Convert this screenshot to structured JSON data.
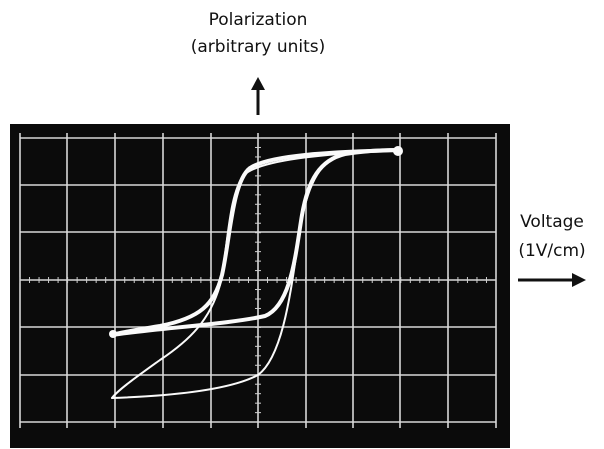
{
  "labels": {
    "y_axis": {
      "title": "Polarization",
      "subtitle": "(arbitrary units)"
    },
    "x_axis": {
      "title": "Voltage",
      "subtitle": "(1V/cm)"
    }
  }
}
